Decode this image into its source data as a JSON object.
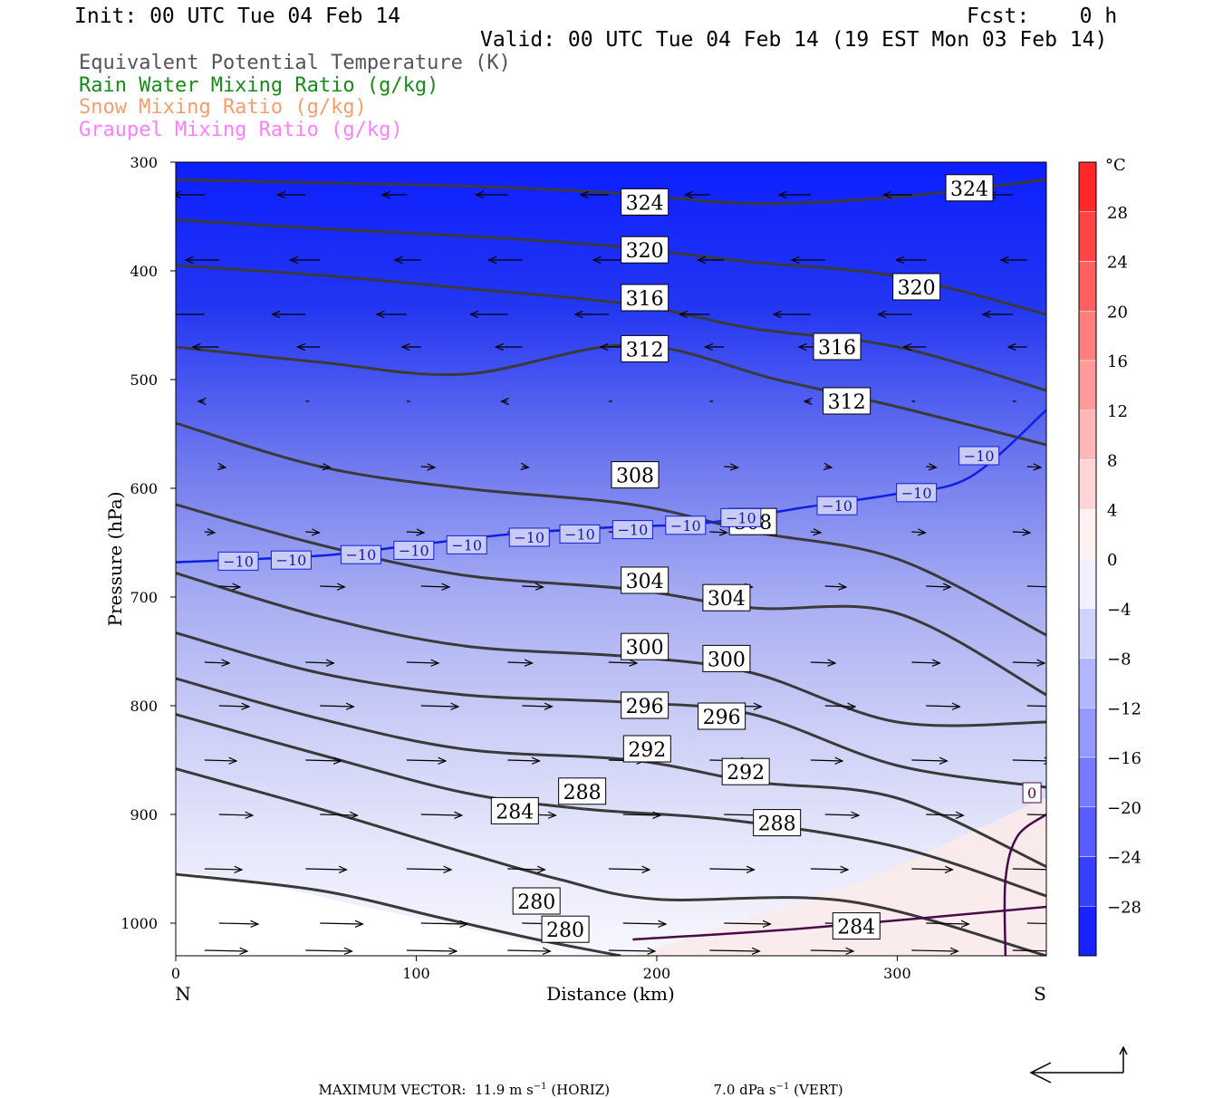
{
  "header": {
    "init": "Init: 00 UTC Tue 04 Feb 14",
    "fcst": "Fcst:    0 h",
    "valid": "Valid: 00 UTC Tue 04 Feb 14 (19 EST Mon 03 Feb 14)"
  },
  "legend": [
    {
      "label": "Equivalent Potential Temperature (K)",
      "color": "#555555"
    },
    {
      "label": "Rain Water Mixing Ratio (g/kg)",
      "color": "#1a8a1a"
    },
    {
      "label": "Snow Mixing Ratio (g/kg)",
      "color": "#f0a070"
    },
    {
      "label": "Graupel Mixing Ratio (g/kg)",
      "color": "#ff80ff"
    }
  ],
  "chart_data": {
    "type": "contour",
    "xlabel": "Distance (km)",
    "ylabel": "Pressure (hPa)",
    "xlim": [
      0,
      362
    ],
    "ylim": [
      1030,
      300
    ],
    "x_ticks": [
      0,
      100,
      200,
      300
    ],
    "y_ticks": [
      300,
      400,
      500,
      600,
      700,
      800,
      900,
      1000
    ],
    "x_end_labels": {
      "left": "N",
      "right": "S"
    },
    "colorbar": {
      "unit": "°C",
      "ticks": [
        28,
        24,
        20,
        16,
        12,
        8,
        4,
        0,
        -4,
        -8,
        -12,
        -16,
        -20,
        -24,
        -28
      ],
      "tick_labels": [
        "28",
        "24",
        "20",
        "16",
        "12",
        "8",
        "4",
        "0",
        "−4",
        "−8",
        "−12",
        "−16",
        "−20",
        "−24",
        "−28"
      ],
      "range": [
        -32,
        32
      ]
    },
    "theta_e_contours": [
      {
        "value": 324,
        "points": [
          [
            0,
            316
          ],
          [
            60,
            319
          ],
          [
            120,
            322
          ],
          [
            180,
            328
          ],
          [
            240,
            338
          ],
          [
            300,
            332
          ],
          [
            362,
            316
          ]
        ]
      },
      {
        "value": 320,
        "points": [
          [
            0,
            353
          ],
          [
            60,
            361
          ],
          [
            120,
            368
          ],
          [
            180,
            377
          ],
          [
            240,
            392
          ],
          [
            300,
            405
          ],
          [
            362,
            440
          ]
        ]
      },
      {
        "value": 316,
        "points": [
          [
            0,
            395
          ],
          [
            60,
            404
          ],
          [
            120,
            416
          ],
          [
            190,
            431
          ],
          [
            240,
            453
          ],
          [
            300,
            470
          ],
          [
            362,
            510
          ]
        ]
      },
      {
        "value": 312,
        "points": [
          [
            0,
            470
          ],
          [
            60,
            484
          ],
          [
            120,
            495
          ],
          [
            190,
            468
          ],
          [
            250,
            500
          ],
          [
            300,
            525
          ],
          [
            362,
            560
          ]
        ]
      },
      {
        "value": 308,
        "points": [
          [
            0,
            540
          ],
          [
            60,
            580
          ],
          [
            120,
            600
          ],
          [
            190,
            615
          ],
          [
            240,
            640
          ],
          [
            300,
            665
          ],
          [
            362,
            735
          ]
        ]
      },
      {
        "value": 304,
        "points": [
          [
            0,
            615
          ],
          [
            60,
            652
          ],
          [
            120,
            680
          ],
          [
            190,
            693
          ],
          [
            240,
            710
          ],
          [
            300,
            715
          ],
          [
            362,
            790
          ]
        ]
      },
      {
        "value": 300,
        "points": [
          [
            0,
            678
          ],
          [
            60,
            718
          ],
          [
            120,
            745
          ],
          [
            190,
            755
          ],
          [
            240,
            770
          ],
          [
            300,
            815
          ],
          [
            362,
            815
          ]
        ]
      },
      {
        "value": 296,
        "points": [
          [
            0,
            733
          ],
          [
            60,
            770
          ],
          [
            120,
            790
          ],
          [
            190,
            797
          ],
          [
            240,
            808
          ],
          [
            300,
            855
          ],
          [
            362,
            875
          ]
        ]
      },
      {
        "value": 292,
        "points": [
          [
            0,
            775
          ],
          [
            60,
            812
          ],
          [
            120,
            840
          ],
          [
            190,
            850
          ],
          [
            240,
            870
          ],
          [
            300,
            885
          ],
          [
            362,
            948
          ]
        ]
      },
      {
        "value": 288,
        "points": [
          [
            0,
            808
          ],
          [
            60,
            845
          ],
          [
            120,
            880
          ],
          [
            170,
            895
          ],
          [
            230,
            905
          ],
          [
            300,
            930
          ],
          [
            362,
            975
          ]
        ]
      },
      {
        "value": 284,
        "points": [
          [
            0,
            858
          ],
          [
            60,
            895
          ],
          [
            120,
            935
          ],
          [
            160,
            960
          ],
          [
            200,
            978
          ],
          [
            280,
            980
          ],
          [
            362,
            1030
          ]
        ]
      },
      {
        "value": 280,
        "points": [
          [
            0,
            955
          ],
          [
            60,
            970
          ],
          [
            110,
            995
          ],
          [
            150,
            1015
          ],
          [
            185,
            1030
          ]
        ]
      }
    ],
    "theta_e_labels": [
      {
        "text": "324",
        "x": 195,
        "p": 337
      },
      {
        "text": "324",
        "x": 330,
        "p": 324
      },
      {
        "text": "320",
        "x": 195,
        "p": 381
      },
      {
        "text": "320",
        "x": 308,
        "p": 415
      },
      {
        "text": "316",
        "x": 195,
        "p": 425
      },
      {
        "text": "316",
        "x": 275,
        "p": 470
      },
      {
        "text": "312",
        "x": 195,
        "p": 472
      },
      {
        "text": "312",
        "x": 279,
        "p": 520
      },
      {
        "text": "308",
        "x": 191,
        "p": 588
      },
      {
        "text": "308",
        "x": 240,
        "p": 631
      },
      {
        "text": "304",
        "x": 195,
        "p": 685
      },
      {
        "text": "304",
        "x": 229,
        "p": 701
      },
      {
        "text": "300",
        "x": 195,
        "p": 746
      },
      {
        "text": "300",
        "x": 229,
        "p": 757
      },
      {
        "text": "296",
        "x": 195,
        "p": 800
      },
      {
        "text": "296",
        "x": 227,
        "p": 810
      },
      {
        "text": "292",
        "x": 196,
        "p": 840
      },
      {
        "text": "292",
        "x": 237,
        "p": 861
      },
      {
        "text": "288",
        "x": 169,
        "p": 879
      },
      {
        "text": "288",
        "x": 250,
        "p": 908
      },
      {
        "text": "284",
        "x": 141,
        "p": 897
      },
      {
        "text": "284",
        "x": 283,
        "p": 1003
      },
      {
        "text": "280",
        "x": 150,
        "p": 980
      },
      {
        "text": "280",
        "x": 162,
        "p": 1006
      }
    ],
    "isotherm": {
      "value": -10,
      "points": [
        [
          0,
          668
        ],
        [
          60,
          662
        ],
        [
          100,
          652
        ],
        [
          140,
          642
        ],
        [
          180,
          636
        ],
        [
          220,
          632
        ],
        [
          260,
          618
        ],
        [
          300,
          605
        ],
        [
          330,
          590
        ],
        [
          362,
          528
        ]
      ],
      "labels": [
        [
          26,
          667
        ],
        [
          48,
          666
        ],
        [
          77,
          661
        ],
        [
          99,
          657
        ],
        [
          121,
          652
        ],
        [
          147,
          645
        ],
        [
          168,
          642
        ],
        [
          190,
          638
        ],
        [
          212,
          634
        ],
        [
          235,
          627
        ],
        [
          275,
          616
        ],
        [
          308,
          604
        ],
        [
          334,
          570
        ]
      ]
    },
    "zero_isotherm": {
      "points": [
        [
          345,
          1030
        ],
        [
          345,
          960
        ],
        [
          350,
          920
        ],
        [
          362,
          900
        ]
      ],
      "label": {
        "text": "0",
        "x": 356,
        "p": 880
      }
    },
    "max_vector": {
      "horiz": "11.9 m s",
      "vert": "7.0 dPa s"
    }
  },
  "footer": {
    "prefix": "MAXIMUM VECTOR:",
    "horiz_value": "11.9 m s",
    "horiz_sup": "−1",
    "horiz_suffix": "(HORIZ)",
    "vert_value": "7.0 dPa s",
    "vert_sup": "−1",
    "vert_suffix": "(VERT)"
  }
}
